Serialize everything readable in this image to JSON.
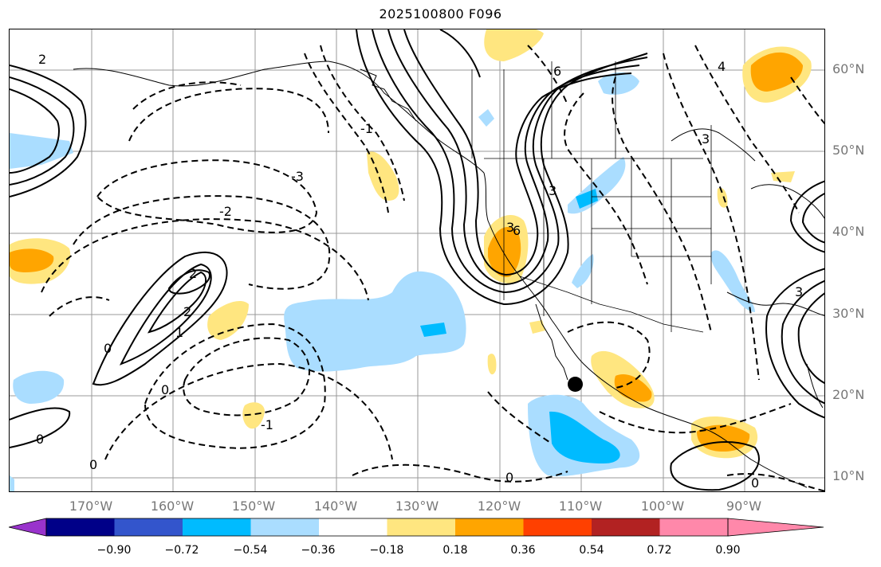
{
  "title": "2025100800 F096",
  "map": {
    "lat_labels": [
      "60°N",
      "50°N",
      "40°N",
      "30°N",
      "20°N",
      "10°N"
    ],
    "lon_labels": [
      "170°W",
      "160°W",
      "150°W",
      "140°W",
      "130°W",
      "120°W",
      "110°W",
      "100°W",
      "90°W"
    ],
    "contour_labels": [
      "0",
      "1",
      "2",
      "2",
      "3",
      "-2",
      "-3",
      "-1",
      "0",
      "3",
      "6",
      "0",
      "0",
      "-1",
      "0",
      "6",
      "4",
      "3",
      "2",
      "3",
      "0"
    ],
    "marker": "storm-position-dot"
  },
  "colorbar": {
    "colors": [
      "#9933cc",
      "#000088",
      "#3355cc",
      "#00bbff",
      "#aaddff",
      "#ffffff",
      "#ffe680",
      "#ffa500",
      "#ff4000",
      "#b22222",
      "#ff88aa"
    ],
    "tick_labels": [
      "−0.90",
      "−0.72",
      "−0.54",
      "−0.36",
      "−0.18",
      "0.18",
      "0.36",
      "0.54",
      "0.72",
      "0.90"
    ]
  }
}
